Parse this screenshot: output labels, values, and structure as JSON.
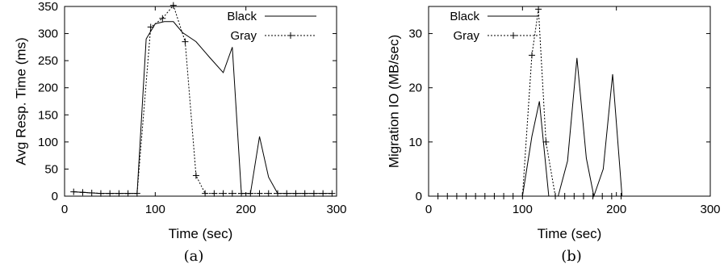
{
  "chart_data": [
    {
      "type": "line",
      "caption": "(a)",
      "xlabel": "Time (sec)",
      "ylabel": "Avg Resp. Time (ms)",
      "xlim": [
        0,
        300
      ],
      "ylim": [
        0,
        350
      ],
      "xticks": [
        0,
        100,
        200,
        300
      ],
      "yticks": [
        0,
        50,
        100,
        150,
        200,
        250,
        300,
        350
      ],
      "legend_position": "top-right",
      "grid": false,
      "series": [
        {
          "name": "Black",
          "style": "solid",
          "marker": "none",
          "x": [
            10,
            20,
            30,
            40,
            50,
            60,
            70,
            80,
            90,
            100,
            110,
            120,
            130,
            145,
            160,
            175,
            185,
            195,
            205,
            215,
            225,
            235,
            245,
            255,
            265,
            275,
            285,
            295
          ],
          "y": [
            8,
            7,
            6,
            5,
            5,
            5,
            5,
            5,
            290,
            318,
            322,
            322,
            302,
            285,
            256,
            228,
            275,
            5,
            5,
            110,
            35,
            5,
            5,
            5,
            5,
            5,
            5,
            5
          ]
        },
        {
          "name": "Gray",
          "style": "dashed",
          "marker": "plus",
          "x": [
            10,
            20,
            30,
            40,
            50,
            60,
            70,
            80,
            95,
            108,
            120,
            133,
            145,
            155,
            165,
            175,
            185,
            195,
            205,
            215,
            225,
            235,
            245,
            255,
            265,
            275,
            285,
            295
          ],
          "y": [
            8,
            7,
            6,
            5,
            5,
            5,
            5,
            5,
            312,
            328,
            352,
            285,
            38,
            5,
            5,
            5,
            5,
            5,
            5,
            5,
            5,
            5,
            5,
            5,
            5,
            5,
            5,
            5
          ]
        }
      ]
    },
    {
      "type": "line",
      "caption": "(b)",
      "xlabel": "Time (sec)",
      "ylabel": "Migration IO (MB/sec)",
      "xlim": [
        0,
        300
      ],
      "ylim": [
        0,
        35
      ],
      "xticks": [
        0,
        100,
        200,
        300
      ],
      "yticks": [
        0,
        10,
        20,
        30
      ],
      "legend_position": "top-left",
      "grid": false,
      "series": [
        {
          "name": "Black",
          "style": "solid",
          "marker": "none",
          "x": [
            0,
            100,
            110,
            118,
            128,
            138,
            148,
            158,
            168,
            176,
            186,
            196,
            206,
            300
          ],
          "y": [
            0,
            0,
            11,
            17.5,
            0,
            0,
            6.5,
            25.5,
            7,
            0,
            5,
            22.5,
            0,
            0
          ]
        },
        {
          "name": "Gray",
          "style": "dashed",
          "marker": "plus",
          "x": [
            10,
            20,
            30,
            40,
            50,
            60,
            70,
            80,
            90,
            100,
            110,
            117,
            125,
            135,
            145,
            155,
            165,
            175,
            185,
            195,
            205
          ],
          "y": [
            0,
            0,
            0,
            0,
            0,
            0,
            0,
            0,
            0,
            0,
            26,
            34.5,
            10,
            0,
            0,
            0,
            0,
            0,
            0,
            0,
            0
          ]
        }
      ]
    }
  ]
}
